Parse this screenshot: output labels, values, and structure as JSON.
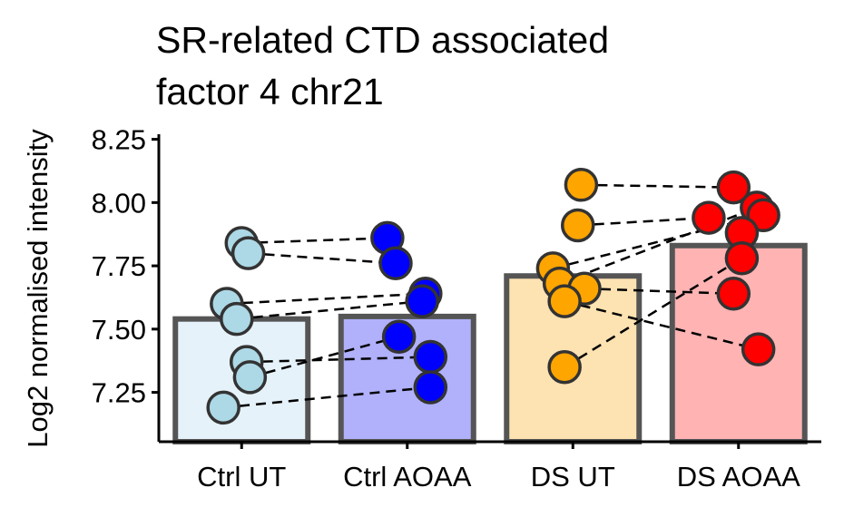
{
  "chart_data": {
    "type": "bar",
    "title": [
      "SR-related CTD associated",
      "factor 4 chr21"
    ],
    "xlabel": "",
    "ylabel": "Log2 normalised intensity",
    "ylim": [
      7.055,
      8.27
    ],
    "yticks": [
      "7.25",
      "7.50",
      "7.75",
      "8.00",
      "8.25"
    ],
    "ytick_values": [
      7.25,
      7.5,
      7.75,
      8.0,
      8.25
    ],
    "categories": [
      "Ctrl UT",
      "Ctrl AOAA",
      "DS UT",
      "DS AOAA"
    ],
    "values": [
      7.54,
      7.55,
      7.71,
      7.83
    ],
    "bar_fill_colors": [
      "#e6f2f9",
      "#b0b0fb",
      "#fde2b2",
      "#ffb3b3"
    ],
    "point_colors": [
      "#add8e6",
      "#0000ff",
      "#ffa500",
      "#ff0000"
    ],
    "bar_border_color": "#555555",
    "points": [
      [
        7.84,
        7.8,
        7.6,
        7.54,
        7.37,
        7.31,
        7.19
      ],
      [
        7.86,
        7.76,
        7.64,
        7.61,
        7.47,
        7.39,
        7.27
      ],
      [
        8.07,
        7.91,
        7.74,
        7.68,
        7.66,
        7.61,
        7.35
      ],
      [
        8.06,
        7.98,
        7.95,
        7.94,
        7.88,
        7.78,
        7.64,
        7.42
      ]
    ],
    "pairs": [
      {
        "from_group": 0,
        "to_group": 1,
        "links": [
          [
            7.84,
            7.86
          ],
          [
            7.8,
            7.76
          ],
          [
            7.6,
            7.64
          ],
          [
            7.54,
            7.61
          ],
          [
            7.37,
            7.39
          ],
          [
            7.31,
            7.47
          ],
          [
            7.19,
            7.27
          ]
        ]
      },
      {
        "from_group": 2,
        "to_group": 3,
        "links": [
          [
            8.07,
            8.06
          ],
          [
            7.91,
            7.94
          ],
          [
            7.74,
            7.95
          ],
          [
            7.68,
            7.98
          ],
          [
            7.66,
            7.64
          ],
          [
            7.61,
            7.42
          ],
          [
            7.35,
            7.78
          ]
        ]
      }
    ],
    "grid": false,
    "legend": "none"
  }
}
